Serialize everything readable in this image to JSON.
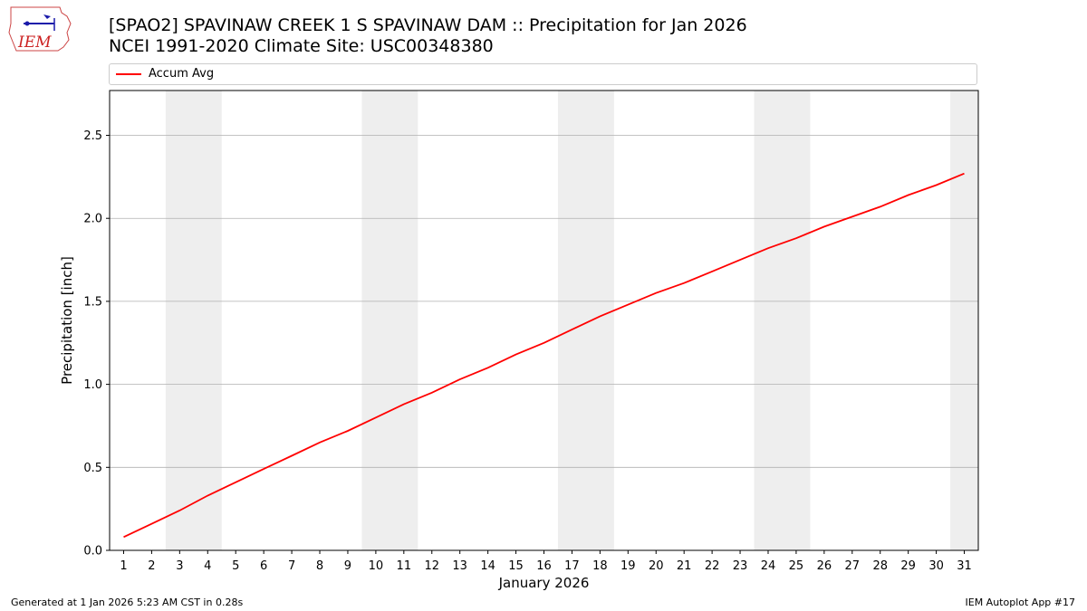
{
  "header": {
    "title_line1": "[SPAO2] SPAVINAW CREEK 1 S SPAVINAW DAM :: Precipitation for Jan 2026",
    "title_line2": "NCEI 1991-2020 Climate Site: USC00348380"
  },
  "logo": {
    "text": "IEM",
    "icon": "iem-logo-icon"
  },
  "footer": {
    "left": "Generated at 1 Jan 2026 5:23 AM CST in 0.28s",
    "right": "IEM Autoplot App #17"
  },
  "colors": {
    "line": "#ff0000",
    "weekend_band": "#eeeeee",
    "grid": "#b0b0b0"
  },
  "chart_data": {
    "type": "line",
    "xlabel": "January 2026",
    "ylabel": "Precipitation [inch]",
    "xlim": [
      0.5,
      31.5
    ],
    "ylim": [
      0,
      2.77
    ],
    "yticks": [
      0.0,
      0.5,
      1.0,
      1.5,
      2.0,
      2.5
    ],
    "ytick_labels": [
      "0.0",
      "0.5",
      "1.0",
      "1.5",
      "2.0",
      "2.5"
    ],
    "grid": "y",
    "legend_placement": "top",
    "shaded_days": [
      [
        3,
        4
      ],
      [
        10,
        11
      ],
      [
        17,
        18
      ],
      [
        24,
        25
      ],
      [
        31,
        31
      ]
    ],
    "x": [
      1,
      2,
      3,
      4,
      5,
      6,
      7,
      8,
      9,
      10,
      11,
      12,
      13,
      14,
      15,
      16,
      17,
      18,
      19,
      20,
      21,
      22,
      23,
      24,
      25,
      26,
      27,
      28,
      29,
      30,
      31
    ],
    "series": [
      {
        "name": "Accum Avg",
        "values": [
          0.08,
          0.16,
          0.24,
          0.33,
          0.41,
          0.49,
          0.57,
          0.65,
          0.72,
          0.8,
          0.88,
          0.95,
          1.03,
          1.1,
          1.18,
          1.25,
          1.33,
          1.41,
          1.48,
          1.55,
          1.61,
          1.68,
          1.75,
          1.82,
          1.88,
          1.95,
          2.01,
          2.07,
          2.14,
          2.2,
          2.27
        ]
      }
    ]
  }
}
